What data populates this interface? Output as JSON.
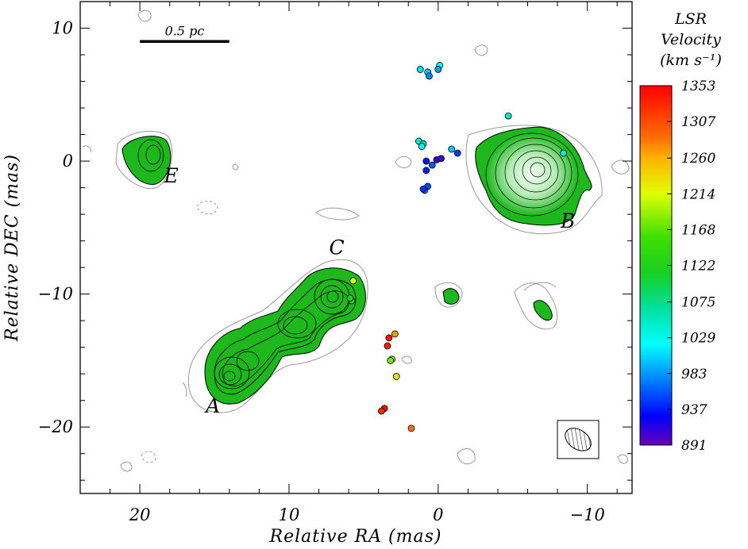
{
  "chart_data": {
    "type": "scatter",
    "title": "",
    "xlabel": "Relative RA (mas)",
    "ylabel": "Relative DEC (mas)",
    "xlim": [
      24,
      -13
    ],
    "ylim": [
      -25,
      12
    ],
    "x_ticks": [
      20,
      10,
      0,
      -10
    ],
    "x_tick_labels": [
      "20",
      "10",
      "0",
      "−10"
    ],
    "y_ticks": [
      10,
      0,
      -10,
      -20
    ],
    "y_tick_labels": [
      "10",
      "0",
      "−10",
      "−20"
    ],
    "scale_bar": {
      "label": "0.5 pc",
      "x_from": 20.0,
      "x_to": 14.0,
      "y": 9.0
    },
    "components": [
      {
        "label": "A",
        "x": 15.1,
        "y": -18.9
      },
      {
        "label": "B",
        "x": -8.7,
        "y": -5.0
      },
      {
        "label": "C",
        "x": 6.8,
        "y": -7.0
      },
      {
        "label": "E",
        "x": 17.9,
        "y": -1.6
      }
    ],
    "colorbar": {
      "title_lines": [
        "LSR",
        "Velocity",
        "(km s⁻¹)"
      ],
      "min": 891,
      "max": 1353,
      "tick_labels": [
        "1353",
        "1307",
        "1260",
        "1214",
        "1168",
        "1122",
        "1075",
        "1029",
        "983",
        "937",
        "891"
      ],
      "tick_values": [
        1353,
        1307,
        1260,
        1214,
        1168,
        1122,
        1075,
        1029,
        983,
        937,
        891
      ]
    },
    "continuum_colors": {
      "fill": "#1cb81c",
      "core": "#c8ecc8",
      "outline": "#9a9a9a"
    },
    "maser_spots": [
      {
        "x": 1.2,
        "y": 6.9,
        "v": 1010
      },
      {
        "x": 0.7,
        "y": 6.7,
        "v": 1000
      },
      {
        "x": 0.6,
        "y": 6.4,
        "v": 975
      },
      {
        "x": -0.1,
        "y": 7.2,
        "v": 1020
      },
      {
        "x": 0.0,
        "y": 6.9,
        "v": 985
      },
      {
        "x": -4.7,
        "y": 3.4,
        "v": 1050
      },
      {
        "x": 1.3,
        "y": 1.5,
        "v": 1045
      },
      {
        "x": 1.0,
        "y": 1.3,
        "v": 1060
      },
      {
        "x": 1.1,
        "y": 1.1,
        "v": 1030
      },
      {
        "x": -0.9,
        "y": 0.9,
        "v": 1000
      },
      {
        "x": -1.3,
        "y": 0.6,
        "v": 950
      },
      {
        "x": 0.1,
        "y": 0.1,
        "v": 910
      },
      {
        "x": -0.2,
        "y": 0.2,
        "v": 905
      },
      {
        "x": 0.8,
        "y": 0.0,
        "v": 935
      },
      {
        "x": 0.4,
        "y": -0.3,
        "v": 960
      },
      {
        "x": 0.8,
        "y": -0.7,
        "v": 940
      },
      {
        "x": 0.7,
        "y": -1.9,
        "v": 955
      },
      {
        "x": 0.9,
        "y": -2.2,
        "v": 975
      },
      {
        "x": 1.0,
        "y": -2.1,
        "v": 945
      },
      {
        "x": -8.4,
        "y": 0.6,
        "v": 1040
      },
      {
        "x": 5.7,
        "y": -9.0,
        "v": 1215
      },
      {
        "x": 5.8,
        "y": -10.5,
        "v": 1125
      },
      {
        "x": 5.9,
        "y": -10.3,
        "v": 1110
      },
      {
        "x": 3.3,
        "y": -13.3,
        "v": 1340
      },
      {
        "x": 2.9,
        "y": -13.0,
        "v": 1270
      },
      {
        "x": 3.4,
        "y": -13.9,
        "v": 1335
      },
      {
        "x": 3.1,
        "y": -14.9,
        "v": 1190
      },
      {
        "x": 3.2,
        "y": -15.0,
        "v": 1175
      },
      {
        "x": 2.8,
        "y": -16.2,
        "v": 1230
      },
      {
        "x": 3.6,
        "y": -18.6,
        "v": 1345
      },
      {
        "x": 3.8,
        "y": -18.8,
        "v": 1330
      },
      {
        "x": 1.8,
        "y": -20.1,
        "v": 1285
      }
    ],
    "grid": false,
    "legend": "colorbar-right"
  }
}
